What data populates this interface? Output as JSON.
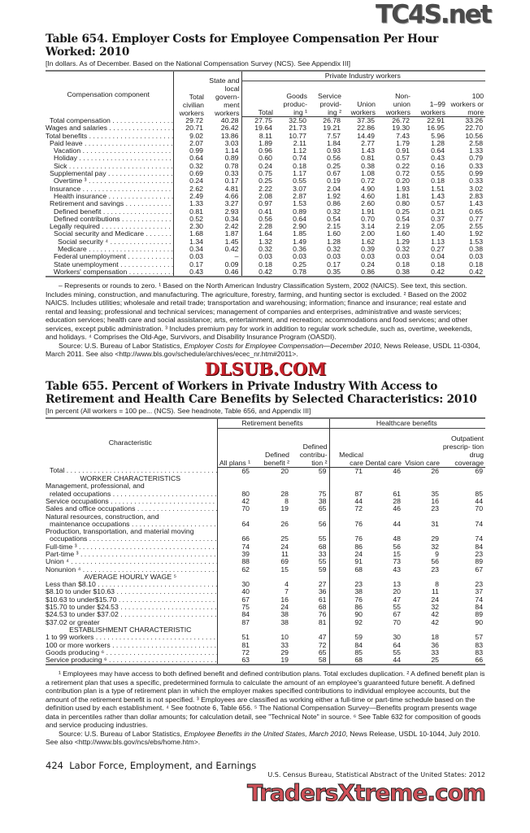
{
  "table654": {
    "title": "Table 654. Employer Costs for Employee Compensation Per Hour Worked: 2010",
    "headnote": "[In dollars. As of December. Based on the National Compensation Survey (NCS). See Appendix III]",
    "header": {
      "component": "Compensation component",
      "total_civilian": "Total civilian workers",
      "state_local": "State and local govern- ment workers",
      "private_group": "Private Industry workers",
      "cols": [
        "Total",
        "Goods produc- ing ¹",
        "Service provid- ing ²",
        "Union workers",
        "Non- union workers",
        "1–99 workers",
        "100 workers or more"
      ]
    },
    "rows": [
      {
        "label": "Total compensation",
        "indent": 1,
        "bold": true,
        "values": [
          "29.72",
          "40.28",
          "27.75",
          "32.50",
          "26.78",
          "37.35",
          "26.72",
          "22.91",
          "33.26"
        ]
      },
      {
        "label": "Wages and salaries",
        "indent": 0,
        "values": [
          "20.71",
          "26.42",
          "19.64",
          "21.73",
          "19.21",
          "22.86",
          "19.30",
          "16.95",
          "22.70"
        ]
      },
      {
        "label": "Total benefits",
        "indent": 0,
        "values": [
          "9.02",
          "13.86",
          "8.11",
          "10.77",
          "7.57",
          "14.49",
          "7.43",
          "5.96",
          "10.56"
        ]
      },
      {
        "label": "Paid leave",
        "indent": 1,
        "values": [
          "2.07",
          "3.03",
          "1.89",
          "2.11",
          "1.84",
          "2.77",
          "1.79",
          "1.28",
          "2.58"
        ]
      },
      {
        "label": "Vacation",
        "indent": 2,
        "values": [
          "0.99",
          "1.14",
          "0.96",
          "1.12",
          "0.93",
          "1.43",
          "0.91",
          "0.64",
          "1.33"
        ]
      },
      {
        "label": "Holiday",
        "indent": 2,
        "values": [
          "0.64",
          "0.89",
          "0.60",
          "0.74",
          "0.56",
          "0.81",
          "0.57",
          "0.43",
          "0.79"
        ]
      },
      {
        "label": "Sick",
        "indent": 2,
        "values": [
          "0.32",
          "0.78",
          "0.24",
          "0.18",
          "0.25",
          "0.38",
          "0.22",
          "0.16",
          "0.33"
        ]
      },
      {
        "label": "Supplemental pay",
        "indent": 1,
        "values": [
          "0.69",
          "0.33",
          "0.75",
          "1.17",
          "0.67",
          "1.08",
          "0.72",
          "0.55",
          "0.99"
        ]
      },
      {
        "label": "Overtime ³",
        "indent": 2,
        "values": [
          "0.24",
          "0.17",
          "0.25",
          "0.55",
          "0.19",
          "0.72",
          "0.20",
          "0.18",
          "0.33"
        ]
      },
      {
        "label": "Insurance",
        "indent": 1,
        "values": [
          "2.62",
          "4.81",
          "2.22",
          "3.07",
          "2.04",
          "4.90",
          "1.93",
          "1.51",
          "3.02"
        ]
      },
      {
        "label": "Health insurance",
        "indent": 2,
        "values": [
          "2.49",
          "4.66",
          "2.08",
          "2.87",
          "1.92",
          "4.60",
          "1.81",
          "1.43",
          "2.83"
        ]
      },
      {
        "label": "Retirement and savings",
        "indent": 1,
        "values": [
          "1.33",
          "3.27",
          "0.97",
          "1.53",
          "0.86",
          "2.60",
          "0.80",
          "0.57",
          "1.43"
        ]
      },
      {
        "label": "Defined benefit",
        "indent": 2,
        "values": [
          "0.81",
          "2.93",
          "0.41",
          "0.89",
          "0.32",
          "1.91",
          "0.25",
          "0.21",
          "0.65"
        ]
      },
      {
        "label": "Defined contributions",
        "indent": 2,
        "values": [
          "0.52",
          "0.34",
          "0.56",
          "0.64",
          "0.54",
          "0.70",
          "0.54",
          "0.37",
          "0.77"
        ]
      },
      {
        "label": "Legally required",
        "indent": 1,
        "values": [
          "2.30",
          "2.42",
          "2.28",
          "2.90",
          "2.15",
          "3.14",
          "2.19",
          "2.05",
          "2.55"
        ]
      },
      {
        "label": "Social security and Medicare",
        "indent": 2,
        "values": [
          "1.68",
          "1.87",
          "1.64",
          "1.85",
          "1.60",
          "2.00",
          "1.60",
          "1.40",
          "1.92"
        ]
      },
      {
        "label": "Social security ⁴",
        "indent": 3,
        "values": [
          "1.34",
          "1.45",
          "1.32",
          "1.49",
          "1.28",
          "1.62",
          "1.29",
          "1.13",
          "1.53"
        ]
      },
      {
        "label": "Medicare",
        "indent": 3,
        "values": [
          "0.34",
          "0.42",
          "0.32",
          "0.36",
          "0.32",
          "0.39",
          "0.32",
          "0.27",
          "0.38"
        ]
      },
      {
        "label": "Federal unemployment",
        "indent": 2,
        "values": [
          "0.03",
          "–",
          "0.03",
          "0.03",
          "0.03",
          "0.03",
          "0.03",
          "0.04",
          "0.03"
        ]
      },
      {
        "label": "State unemployment",
        "indent": 2,
        "values": [
          "0.17",
          "0.09",
          "0.18",
          "0.25",
          "0.17",
          "0.24",
          "0.18",
          "0.18",
          "0.18"
        ]
      },
      {
        "label": "Workers' compensation",
        "indent": 2,
        "values": [
          "0.43",
          "0.46",
          "0.42",
          "0.78",
          "0.35",
          "0.86",
          "0.38",
          "0.42",
          "0.42"
        ]
      }
    ],
    "footnotes": "– Represents or rounds to zero. ¹ Based on the North American Industry Classification System, 2002 (NAICS). See text, this section. Includes mining, construction, and manufacturing. The agriculture, forestry, farming, and hunting sector is excluded. ² Based on the 2002 NAICS. Includes utilities; wholesale and retail trade; transportation and warehousing; information; finance and insurance; real estate and rental and leasing; professional and technical services; management of companies and enterprises, administrative and waste services; education services; health care and social assistance;  arts, entertainment, and recreation; accommodations and food services; and other services, except public administration. ³ Includes premium pay for work in addition to regular work schedule, such as, overtime, weekends, and holidays. ⁴ Comprises the Old-Age, Survivors, and Disability Insurance Program (OASDI).",
    "source_prefix": "Source: U.S. Bureau of Labor Statistics, ",
    "source_title": "Employer Costs for Employee Compensation—December 2010",
    "source_suffix": ", News Release, USDL 11-0304, March 2011. See also <http://www.bls.gov/schedule/archives/ecec_nr.htm#2011>."
  },
  "table655": {
    "title": "Table 655. Percent of Workers in Private Industry With Access to Retirement and Health Care Benefits by Selected Characteristics: 2010",
    "headnote": "[In percent (All workers = 100 pe... (NCS). See headnote, Table 656, and Appendix III]",
    "header": {
      "characteristic": "Characteristic",
      "retirement_group": "Retirement benefits",
      "health_group": "Healthcare benefits",
      "cols": [
        "All plans ¹",
        "Defined benefit ²",
        "Defined contribu- tion ²",
        "Medical care",
        "Dental care",
        "Vision care",
        "Outpatient prescrip- tion drug coverage"
      ]
    },
    "rows": [
      {
        "label": "Total",
        "indent": 1,
        "bold": true,
        "values": [
          "65",
          "20",
          "59",
          "71",
          "46",
          "26",
          "69"
        ]
      },
      {
        "label": "WORKER CHARACTERISTICS",
        "section": true
      },
      {
        "label": "Management, professional, and",
        "nodots": true
      },
      {
        "label": "related occupations",
        "indent": 1,
        "values": [
          "80",
          "28",
          "75",
          "87",
          "61",
          "35",
          "85"
        ]
      },
      {
        "label": "Service occupations",
        "values": [
          "42",
          "8",
          "38",
          "44",
          "28",
          "16",
          "44"
        ]
      },
      {
        "label": "Sales and office occupations",
        "values": [
          "70",
          "19",
          "65",
          "72",
          "46",
          "23",
          "70"
        ]
      },
      {
        "label": "Natural resources, construction, and",
        "nodots": true
      },
      {
        "label": "maintenance occupations",
        "indent": 1,
        "values": [
          "64",
          "26",
          "56",
          "76",
          "44",
          "31",
          "74"
        ]
      },
      {
        "label": "Production, transportation, and material moving",
        "nodots": true
      },
      {
        "label": "occupations",
        "indent": 1,
        "values": [
          "66",
          "25",
          "55",
          "76",
          "48",
          "29",
          "74"
        ]
      },
      {
        "label": "Full-time ³",
        "values": [
          "74",
          "24",
          "68",
          "86",
          "56",
          "32",
          "84"
        ]
      },
      {
        "label": "Part-time ³",
        "values": [
          "39",
          "11",
          "33",
          "24",
          "15",
          "9",
          "23"
        ]
      },
      {
        "label": "Union ⁴",
        "values": [
          "88",
          "69",
          "55",
          "91",
          "73",
          "56",
          "89"
        ]
      },
      {
        "label": "Nonunion ⁴",
        "values": [
          "62",
          "15",
          "59",
          "68",
          "43",
          "23",
          "67"
        ]
      },
      {
        "label": "AVERAGE HOURLY WAGE ⁵",
        "section": true
      },
      {
        "label": "Less than $8.10",
        "values": [
          "30",
          "4",
          "27",
          "23",
          "13",
          "8",
          "23"
        ]
      },
      {
        "label": "$8.10 to under $10.63",
        "values": [
          "40",
          "7",
          "36",
          "38",
          "20",
          "11",
          "37"
        ]
      },
      {
        "label": "$10.63 to under$15.70",
        "values": [
          "67",
          "16",
          "61",
          "76",
          "47",
          "24",
          "74"
        ]
      },
      {
        "label": "$15.70 to under $24.53",
        "values": [
          "75",
          "24",
          "68",
          "86",
          "55",
          "32",
          "84"
        ]
      },
      {
        "label": "$24.53 to under $37.02",
        "values": [
          "84",
          "38",
          "76",
          "90",
          "67",
          "42",
          "89"
        ]
      },
      {
        "label": "$37.02 or greater",
        "nodots": true,
        "values": [
          "87",
          "38",
          "81",
          "92",
          "70",
          "42",
          "90"
        ]
      },
      {
        "label": "ESTABLISHMENT CHARACTERISTIC",
        "section": true
      },
      {
        "label": "1 to 99 workers",
        "values": [
          "51",
          "10",
          "47",
          "59",
          "30",
          "18",
          "57"
        ]
      },
      {
        "label": "100 or more workers",
        "values": [
          "81",
          "33",
          "72",
          "84",
          "64",
          "36",
          "83"
        ]
      },
      {
        "label": "Goods producing ⁶",
        "values": [
          "72",
          "29",
          "65",
          "85",
          "55",
          "33",
          "83"
        ]
      },
      {
        "label": "Service producing ⁶",
        "values": [
          "63",
          "19",
          "58",
          "68",
          "44",
          "25",
          "66"
        ]
      }
    ],
    "footnotes": "¹ Employees may have access to both defined benefit and defined contribution plans. Total excludes duplication. ² A defined benefit plan is a retirement plan that uses a specific, predetermined formula to calculate the amount of an employee's guaranteed future benefit. A defined contribution plan is a type of retirement plan in which the employer makes specified contributions to individual employee accounts, but the amount of the retirement benefit is not specified. ³ Employees are classified as working either a full-time or part-time schedule based on the definition used by each establishment. ⁴ See footnote 6, Table 656. ⁵ The National Compensation Survey—Benefits program presents wage data in percentiles rather than dollar amounts; for calculation detail, see \"Technical Note\" in source. ⁶ See Table 632 for composition of goods and service producing industries.",
    "source_prefix": "Source: U.S. Bureau of Labor Statistics, ",
    "source_title": "Employee Benefits in the United States, March 2010",
    "source_suffix": ", News Release, USDL 10-1044, July 2010. See also <http://www.bls.gov/ncs/ebs/home.htm>."
  },
  "footer": {
    "page_label": "424  Labor Force, Employment, and Earnings",
    "publication": "U.S. Census Bureau, Statistical Abstract of the United States: 2012"
  },
  "watermarks": {
    "top": "TC4S.net",
    "middle": "DLSUB.COM",
    "bottom": "TradersXtreme.com",
    "red": "#c8202a",
    "gray": "#555555"
  }
}
